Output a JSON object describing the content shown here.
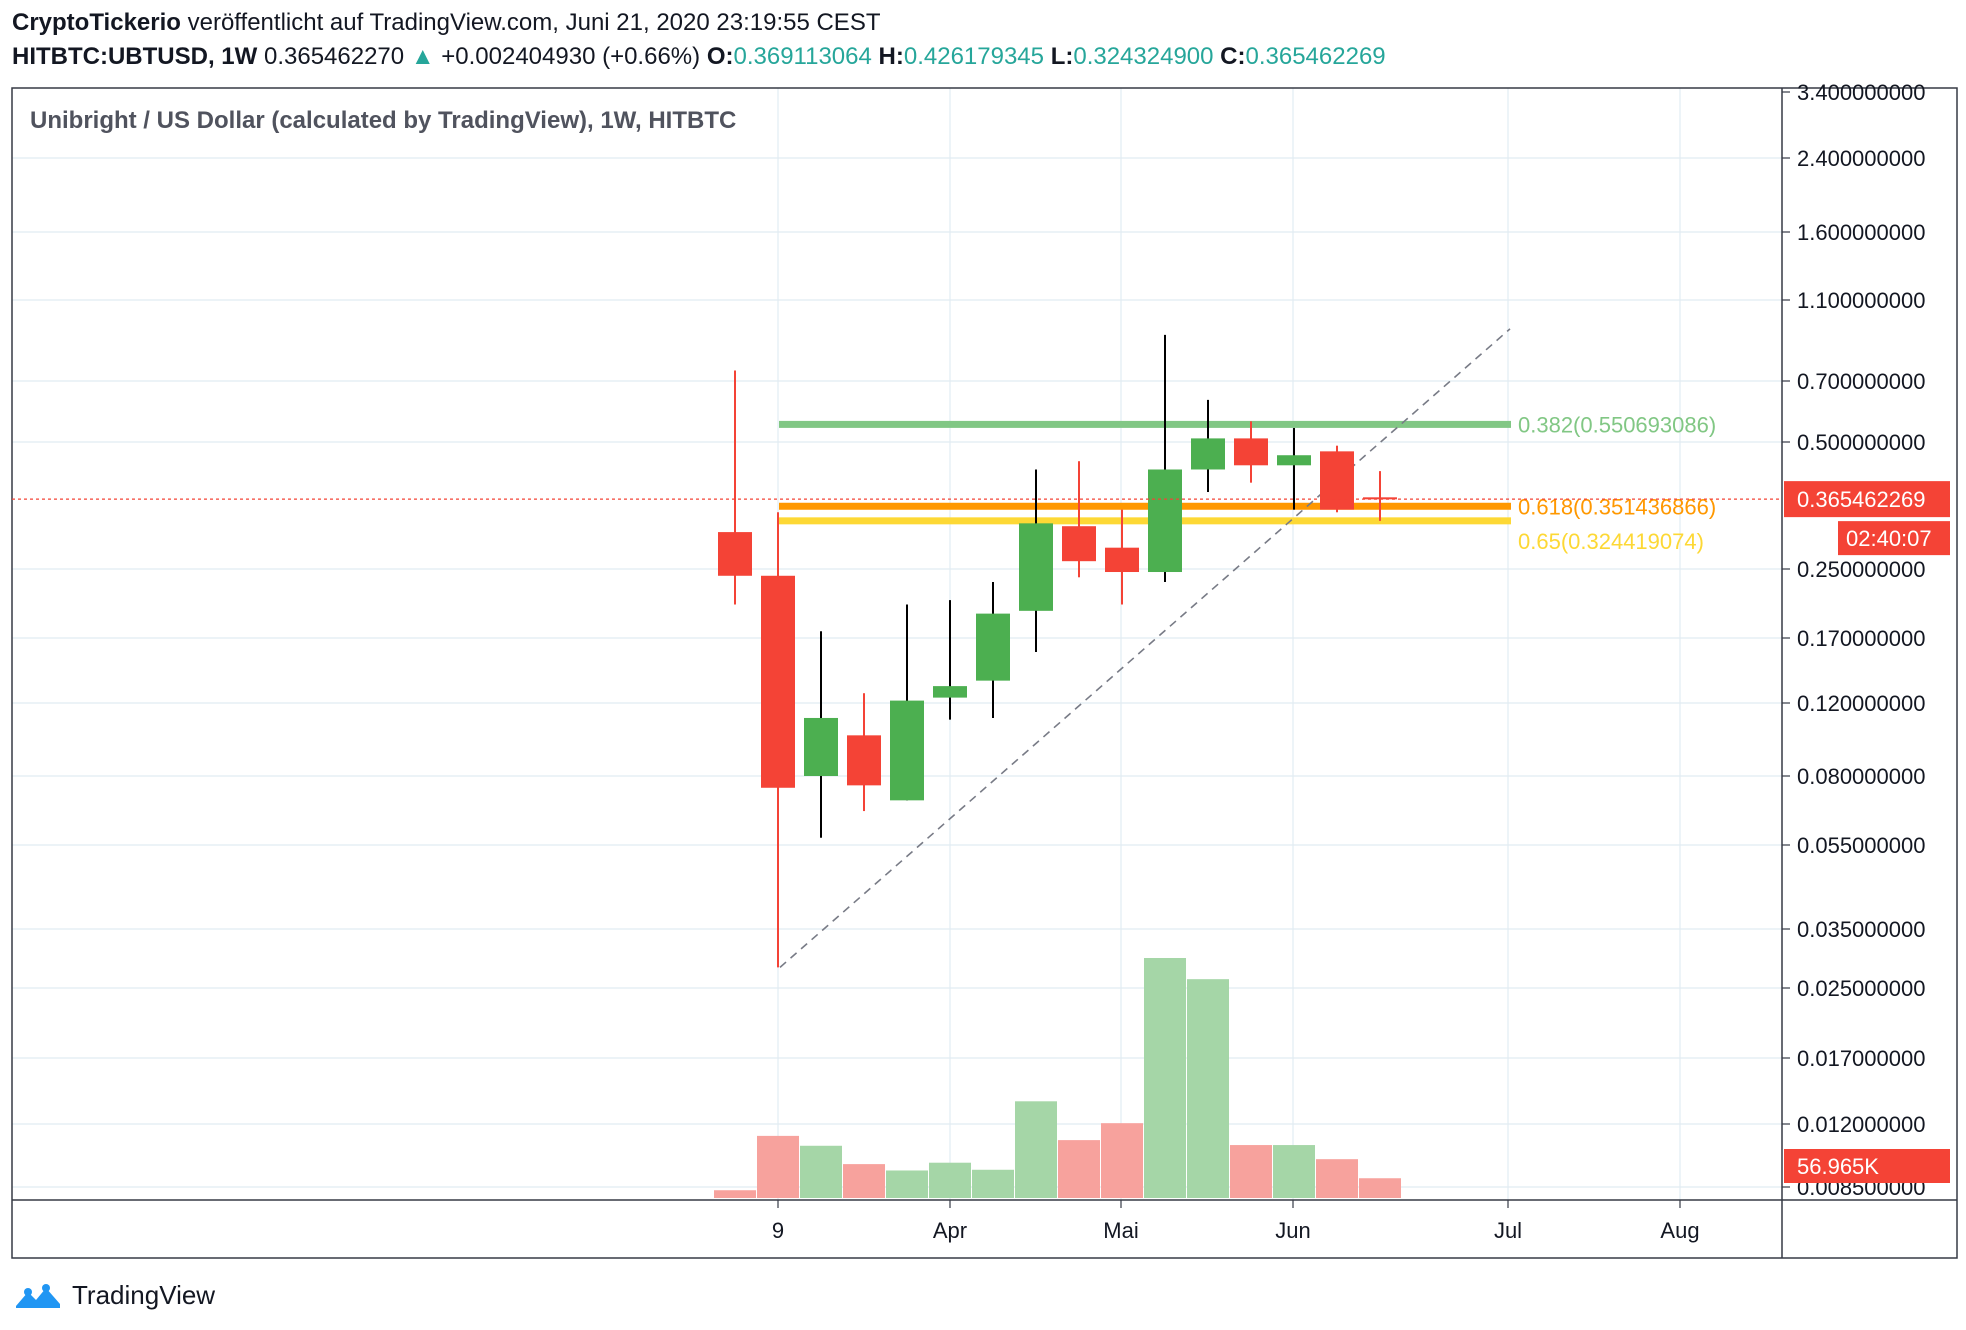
{
  "header": {
    "publisher": "CryptoTickerio",
    "published_text": "veröffentlicht auf TradingView.com, Juni 21, 2020 23:19:55 CEST",
    "symbol": "HITBTC:UBTUSD, 1W",
    "price": "0.365462270",
    "change_arrow": "▲",
    "change": "+0.002404930 (+0.66%)",
    "o_label": "O:",
    "o_value": "0.369113064",
    "h_label": "H:",
    "h_value": "0.426179345",
    "l_label": "L:",
    "l_value": "0.324324900",
    "c_label": "C:",
    "c_value": "0.365462269"
  },
  "footer": {
    "brand": "TradingView",
    "logo_icon": "tradingview-logo-icon"
  },
  "colors": {
    "up": "#4caf50",
    "down": "#f44336",
    "vol_up": "#a5d6a7",
    "vol_down": "#f7a29d",
    "fib382": "#81c784",
    "fib618": "#ff9800",
    "fib65": "#fdd835",
    "grid": "#e1ecf2",
    "axis_text": "#131722"
  },
  "chart_data": {
    "type": "candlestick",
    "title": "Unibright / US Dollar (calculated by TradingView), 1W, HITBTC",
    "y_scale": "log",
    "y_ticks": [
      "3.400000000",
      "2.400000000",
      "1.600000000",
      "1.100000000",
      "0.700000000",
      "0.500000000",
      "0.250000000",
      "0.170000000",
      "0.120000000",
      "0.080000000",
      "0.055000000",
      "0.035000000",
      "0.025000000",
      "0.017000000",
      "0.012000000",
      "0.008500000"
    ],
    "x_ticks": [
      "9",
      "Apr",
      "Mai",
      "Jun",
      "Jul",
      "Aug"
    ],
    "candles": [
      {
        "o": 0.305,
        "h": 0.74,
        "l": 0.205,
        "c": 0.24
      },
      {
        "o": 0.24,
        "h": 0.34,
        "l": 0.028,
        "c": 0.075
      },
      {
        "o": 0.08,
        "h": 0.177,
        "l": 0.057,
        "c": 0.11
      },
      {
        "o": 0.1,
        "h": 0.126,
        "l": 0.066,
        "c": 0.076
      },
      {
        "o": 0.07,
        "h": 0.205,
        "l": 0.07,
        "c": 0.121
      },
      {
        "o": 0.123,
        "h": 0.21,
        "l": 0.109,
        "c": 0.131
      },
      {
        "o": 0.135,
        "h": 0.232,
        "l": 0.11,
        "c": 0.195
      },
      {
        "o": 0.198,
        "h": 0.43,
        "l": 0.158,
        "c": 0.32
      },
      {
        "o": 0.315,
        "h": 0.45,
        "l": 0.238,
        "c": 0.26
      },
      {
        "o": 0.28,
        "h": 0.345,
        "l": 0.205,
        "c": 0.245
      },
      {
        "o": 0.245,
        "h": 0.9,
        "l": 0.232,
        "c": 0.43
      },
      {
        "o": 0.43,
        "h": 0.63,
        "l": 0.38,
        "c": 0.51
      },
      {
        "o": 0.51,
        "h": 0.56,
        "l": 0.4,
        "c": 0.44
      },
      {
        "o": 0.44,
        "h": 0.54,
        "l": 0.345,
        "c": 0.465
      },
      {
        "o": 0.475,
        "h": 0.49,
        "l": 0.34,
        "c": 0.345
      },
      {
        "o": 0.369113064,
        "h": 0.426179345,
        "l": 0.3243249,
        "c": 0.365462269
      }
    ],
    "volume_bars": [
      {
        "value": 0.11,
        "dir": "down"
      },
      {
        "value": 0.88,
        "dir": "down"
      },
      {
        "value": 0.74,
        "dir": "up"
      },
      {
        "value": 0.48,
        "dir": "down"
      },
      {
        "value": 0.39,
        "dir": "up"
      },
      {
        "value": 0.5,
        "dir": "up"
      },
      {
        "value": 0.4,
        "dir": "up"
      },
      {
        "value": 1.37,
        "dir": "up"
      },
      {
        "value": 0.82,
        "dir": "down"
      },
      {
        "value": 1.06,
        "dir": "down"
      },
      {
        "value": 3.4,
        "dir": "up"
      },
      {
        "value": 3.1,
        "dir": "up"
      },
      {
        "value": 0.75,
        "dir": "down"
      },
      {
        "value": 0.75,
        "dir": "up"
      },
      {
        "value": 0.55,
        "dir": "down"
      },
      {
        "value": 0.28,
        "dir": "down"
      }
    ],
    "fib_levels": [
      {
        "label": "0.382(0.550693086)",
        "value": 0.550693086
      },
      {
        "label": "0.618(0.351436866)",
        "value": 0.351436866
      },
      {
        "label": "0.65(0.324419074)",
        "value": 0.324419074
      }
    ],
    "trendline": {
      "from": 0.028,
      "to": 0.9
    },
    "last_price_label": "0.365462269",
    "countdown": "02:40:07",
    "volume_label": "56.965K"
  }
}
